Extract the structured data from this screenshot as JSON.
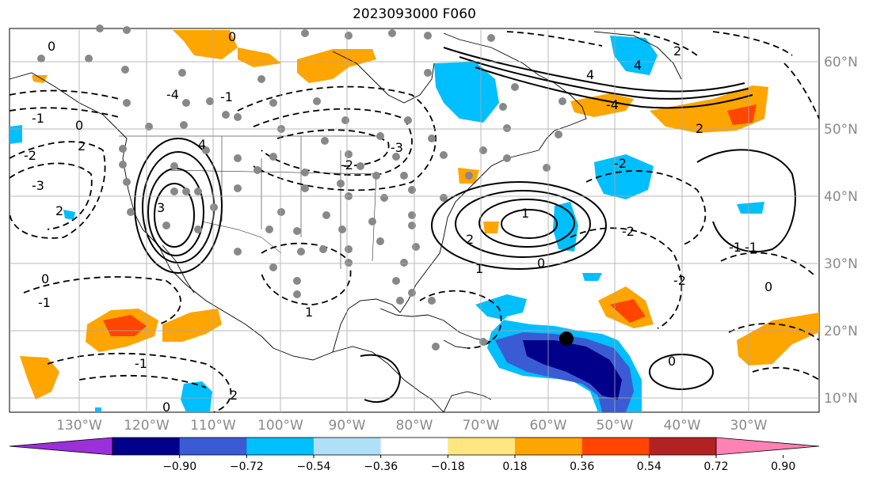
{
  "title": "2023093000 F060",
  "longitude_labels": [
    "130°W",
    "120°W",
    "110°W",
    "100°W",
    "90°W",
    "80°W",
    "70°W",
    "60°W",
    "50°W",
    "40°W",
    "30°W"
  ],
  "latitude_labels": [
    "60°N",
    "50°N",
    "40°N",
    "30°N",
    "20°N",
    "10°N"
  ],
  "colorbar": {
    "tick_labels": [
      "−0.90",
      "−0.72",
      "−0.54",
      "−0.36",
      "−0.18",
      "0.18",
      "0.36",
      "0.54",
      "0.72",
      "0.90"
    ],
    "colors": [
      "#9b30d9",
      "#00008b",
      "#3a5bd4",
      "#00bfff",
      "#b0e0f8",
      "#ffffff",
      "#ffe680",
      "#ffa500",
      "#ff4500",
      "#b22222",
      "#ff82b4"
    ],
    "extend": "both"
  },
  "contour_labels": [
    "0",
    "0",
    "-1",
    "-2",
    "-1",
    "0",
    "2",
    "4",
    "-3",
    "-4",
    "-2",
    "-1",
    "0",
    "1",
    "2",
    "3",
    "4",
    "2",
    "1",
    "0",
    "-1",
    "-2",
    "4",
    "2",
    "0",
    "-1",
    "-2",
    "-3",
    "-4",
    "2",
    "-1",
    "1",
    "0",
    "-2",
    "0",
    "2"
  ],
  "legend_colors": {
    "land_outline": "#000000",
    "station_dot": "#888888",
    "grid": "#aaaaaa",
    "marker": "#000000"
  }
}
